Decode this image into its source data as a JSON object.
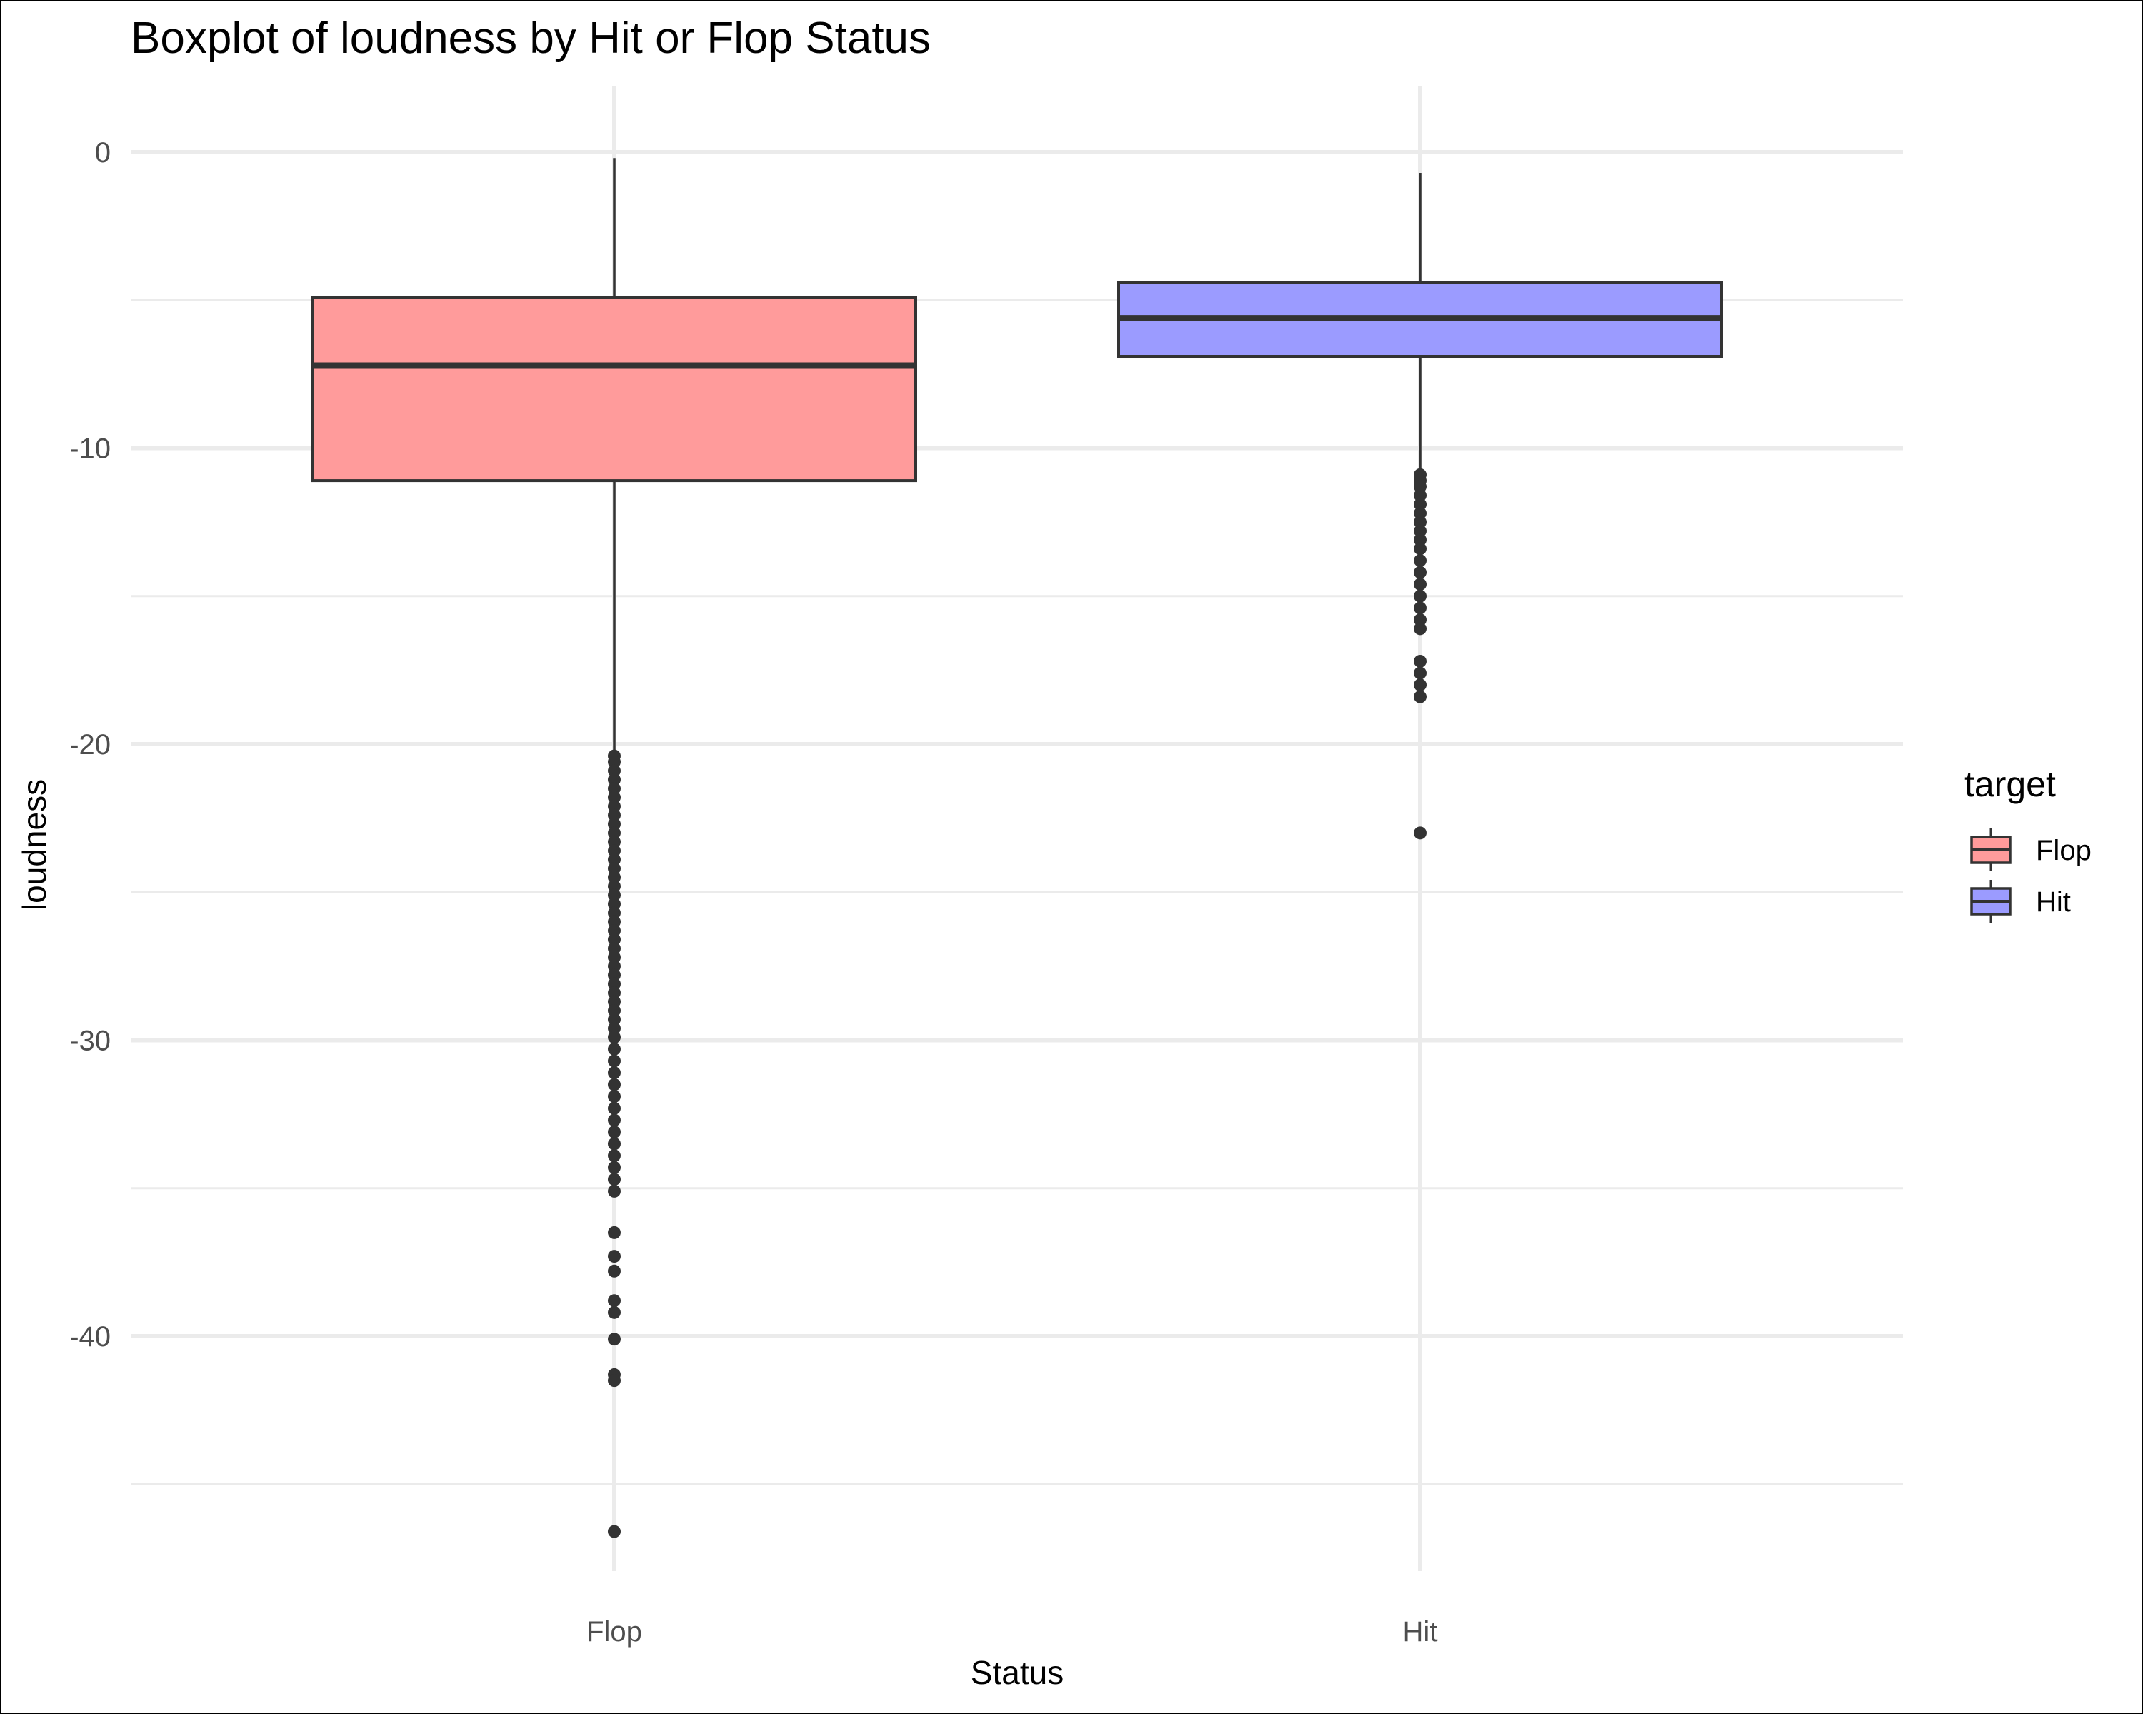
{
  "chart_data": {
    "type": "boxplot",
    "title": "Boxplot of loudness by Hit or Flop Status",
    "xlabel": "Status",
    "ylabel": "loudness",
    "ylim": [
      -48,
      2.2
    ],
    "y_ticks": [
      0,
      -10,
      -20,
      -30,
      -40
    ],
    "y_minor_ticks": [
      -5,
      -15,
      -25,
      -35,
      -45
    ],
    "categories": [
      "Flop",
      "Hit"
    ],
    "grid": true,
    "legend": {
      "title": "target",
      "position": "right",
      "items": [
        {
          "label": "Flop",
          "color": "#ff9b9b"
        },
        {
          "label": "Hit",
          "color": "#9b9bff"
        }
      ]
    },
    "series": [
      {
        "category": "Flop",
        "color": "#ff9b9b",
        "whisker_low": -20.3,
        "q1": -11.1,
        "median": -7.2,
        "q3": -4.9,
        "whisker_high": -0.2,
        "outliers": [
          -20.4,
          -20.6,
          -20.9,
          -21.2,
          -21.5,
          -21.8,
          -22.1,
          -22.4,
          -22.7,
          -23.0,
          -23.3,
          -23.6,
          -23.9,
          -24.2,
          -24.5,
          -24.8,
          -25.1,
          -25.4,
          -25.7,
          -26.0,
          -26.3,
          -26.6,
          -26.9,
          -27.2,
          -27.5,
          -27.8,
          -28.1,
          -28.4,
          -28.7,
          -29.0,
          -29.3,
          -29.6,
          -29.9,
          -30.3,
          -30.7,
          -31.1,
          -31.5,
          -31.9,
          -32.3,
          -32.7,
          -33.1,
          -33.5,
          -33.9,
          -34.3,
          -34.7,
          -35.1,
          -36.5,
          -37.3,
          -37.8,
          -38.8,
          -39.2,
          -40.1,
          -41.3,
          -41.5,
          -46.6
        ]
      },
      {
        "category": "Hit",
        "color": "#9b9bff",
        "whisker_low": -10.9,
        "q1": -6.9,
        "median": -5.6,
        "q3": -4.4,
        "whisker_high": -0.7,
        "outliers": [
          -10.9,
          -11.1,
          -11.3,
          -11.6,
          -11.9,
          -12.2,
          -12.5,
          -12.8,
          -13.1,
          -13.4,
          -13.8,
          -14.2,
          -14.6,
          -15.0,
          -15.4,
          -15.8,
          -16.1,
          -17.2,
          -17.6,
          -18.0,
          -18.4,
          -23.0
        ]
      }
    ]
  }
}
